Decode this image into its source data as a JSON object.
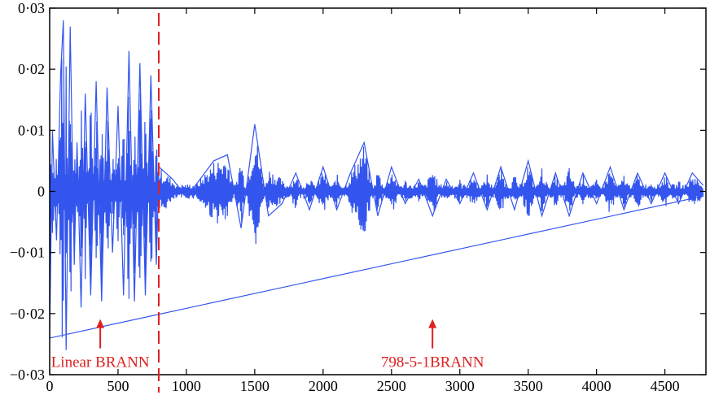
{
  "chart_data": {
    "type": "line",
    "title": "",
    "xlabel": "",
    "ylabel": "",
    "xlim": [
      0,
      4800
    ],
    "ylim": [
      -0.03,
      0.03
    ],
    "x_ticks": [
      0,
      500,
      1000,
      1500,
      2000,
      2500,
      3000,
      3500,
      4000,
      4500
    ],
    "x_tick_labels": [
      "0",
      "500",
      "1000",
      "1500",
      "2000",
      "2500",
      "3000",
      "3500",
      "4000",
      "4500"
    ],
    "y_ticks": [
      -0.03,
      -0.02,
      -0.01,
      0,
      0.01,
      0.02,
      0.03
    ],
    "y_tick_labels": [
      "−0·03",
      "−0·02",
      "−0·01",
      "0",
      "0·01",
      "0·02",
      "0·03"
    ],
    "grid": false,
    "line_color": "#3355ee",
    "annotation_color": "#dd2222",
    "split_x": 798,
    "series": [
      {
        "x": [
          0,
          20,
          50,
          80,
          100,
          120,
          150,
          180,
          200,
          230,
          260,
          300,
          340,
          380,
          420,
          460,
          500,
          540,
          580,
          620,
          660,
          700,
          740,
          780,
          800,
          900,
          1000,
          1100,
          1200,
          1300,
          1400,
          1500,
          1600,
          1700,
          1800,
          1900,
          2000,
          2100,
          2200,
          2300,
          2400,
          2500,
          2600,
          2700,
          2800,
          2900,
          3000,
          3100,
          3200,
          3300,
          3400,
          3500,
          3600,
          3700,
          3800,
          3900,
          4000,
          4100,
          4200,
          4300,
          4400,
          4500,
          4600,
          4700,
          4780
        ],
        "y": [
          -0.024,
          0.01,
          -0.008,
          0.019,
          0.028,
          -0.026,
          0.027,
          -0.012,
          0.008,
          -0.019,
          0.016,
          -0.017,
          0.018,
          -0.018,
          0.017,
          -0.01,
          0.014,
          -0.017,
          0.023,
          -0.018,
          0.021,
          -0.017,
          0.019,
          -0.012,
          0.004,
          0.002,
          -0.001,
          0.002,
          0.005,
          0.006,
          -0.006,
          0.011,
          -0.004,
          -0.002,
          0.003,
          -0.003,
          0.004,
          -0.003,
          0.003,
          0.008,
          -0.004,
          0.004,
          -0.002,
          0.002,
          -0.004,
          0.002,
          -0.002,
          0.003,
          -0.003,
          0.004,
          -0.003,
          0.005,
          -0.004,
          0.003,
          -0.004,
          0.003,
          -0.002,
          0.004,
          -0.003,
          0.003,
          -0.002,
          0.003,
          -0.002,
          0.003,
          0.001
        ]
      }
    ],
    "annotations": [
      {
        "text": "Linear BRANN",
        "x": 370,
        "y": -0.0225
      },
      {
        "text": "798-5-1BRANN",
        "x": 2800,
        "y": -0.0225
      }
    ]
  }
}
